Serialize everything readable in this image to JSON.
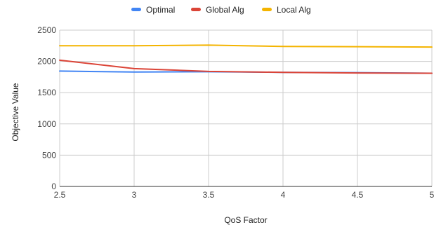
{
  "chart_data": {
    "type": "line",
    "title": "",
    "xlabel": "QoS Factor",
    "ylabel": "Objective Value",
    "xlim": [
      2.5,
      5
    ],
    "ylim": [
      0,
      2500
    ],
    "x_ticks": [
      "2.5",
      "3",
      "3.5",
      "4",
      "4.5",
      "5"
    ],
    "y_ticks": [
      "0",
      "500",
      "1000",
      "1500",
      "2000",
      "2500"
    ],
    "grid": true,
    "legend_position": "top-center",
    "x": [
      2.5,
      3,
      3.5,
      4,
      4.5,
      5
    ],
    "series": [
      {
        "name": "Optimal",
        "color": "#4285F4",
        "values": [
          1845,
          1830,
          1835,
          1825,
          1820,
          1810
        ]
      },
      {
        "name": "Global Alg",
        "color": "#DB4437",
        "values": [
          2020,
          1885,
          1840,
          1825,
          1815,
          1810
        ]
      },
      {
        "name": "Local Alg",
        "color": "#F4B400",
        "values": [
          2250,
          2250,
          2260,
          2240,
          2235,
          2230
        ]
      }
    ]
  }
}
